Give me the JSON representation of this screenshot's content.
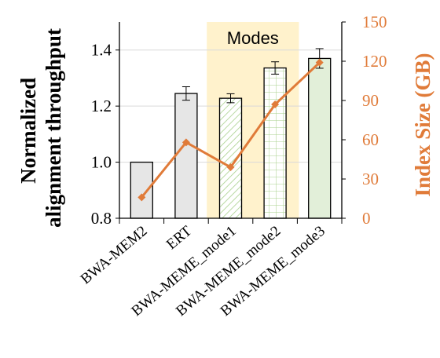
{
  "chart_data": {
    "type": "bar",
    "categories": [
      "BWA-MEM2",
      "ERT",
      "BWA-MEME_mode1",
      "BWA-MEME_mode2",
      "BWA-MEME_mode3"
    ],
    "series": [
      {
        "axis": "left",
        "kind": "bar",
        "values": [
          1.0,
          1.245,
          1.228,
          1.336,
          1.37
        ],
        "errors": [
          0.0,
          0.024,
          0.016,
          0.022,
          0.035
        ],
        "fills": [
          "#e6e6e6",
          "#e6e6e6",
          "hatch-green",
          "grid-green",
          "#e2efd9"
        ]
      },
      {
        "axis": "right",
        "kind": "line",
        "values": [
          16,
          58,
          39,
          87,
          119
        ],
        "color": "#E07B39"
      }
    ],
    "ylabel": "Normalized alignment throughput",
    "ylabel_lines": [
      "Normalized",
      "alignment throughput"
    ],
    "y2label": "Index Size (GB)",
    "ylim": [
      0.8,
      1.5
    ],
    "yticks": [
      "0.8",
      "1.0",
      "1.2",
      "1.4"
    ],
    "y2lim": [
      0,
      150
    ],
    "y2ticks": [
      "0",
      "30",
      "60",
      "90",
      "120",
      "150"
    ],
    "grid": true,
    "annotation": {
      "text": "Modes",
      "highlight_color": "#fff2cc",
      "span_categories": [
        "BWA-MEME_mode1",
        "BWA-MEME_mode2"
      ]
    }
  }
}
